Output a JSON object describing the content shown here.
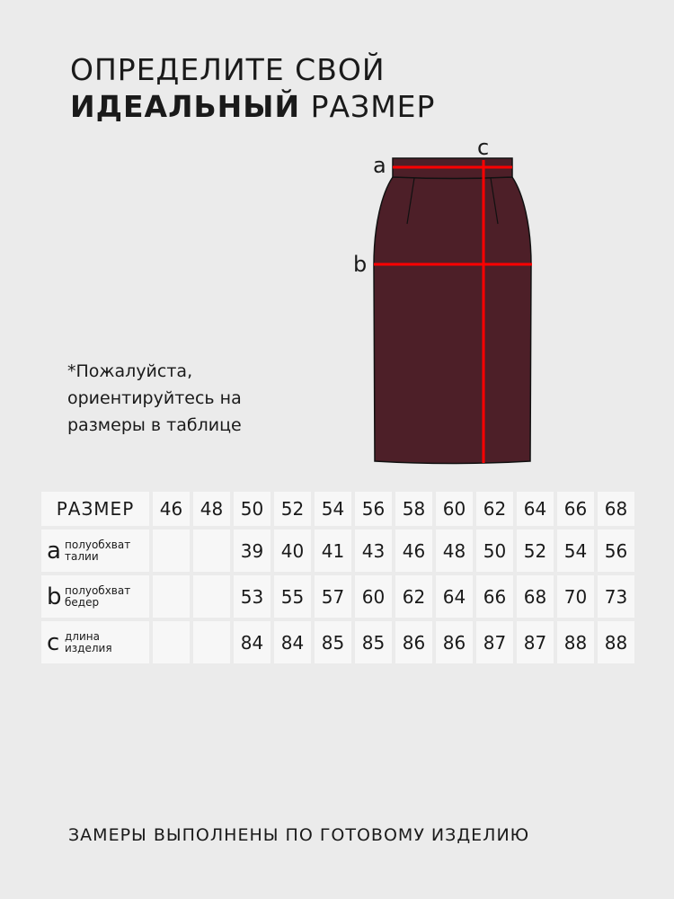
{
  "title": {
    "line1": "ОПРЕДЕЛИТЕ СВОЙ",
    "line2_bold": "ИДЕАЛЬНЫЙ",
    "line2_rest": " РАЗМЕР"
  },
  "diagram": {
    "labels": {
      "a": "a",
      "b": "b",
      "c": "c"
    },
    "skirt_color": "#4d1f28",
    "measure_color": "#ff0000"
  },
  "note": "*Пожалуйста, ориентируйтесь на размеры в таблице",
  "table": {
    "header_label": "РАЗМЕР",
    "sizes": [
      "46",
      "48",
      "50",
      "52",
      "54",
      "56",
      "58",
      "60",
      "62",
      "64",
      "66",
      "68"
    ],
    "rows": [
      {
        "letter": "a",
        "desc1": "полуобхват",
        "desc2": "талии",
        "values": [
          "",
          "",
          "39",
          "40",
          "41",
          "43",
          "46",
          "48",
          "50",
          "52",
          "54",
          "56"
        ]
      },
      {
        "letter": "b",
        "desc1": "полуобхват",
        "desc2": "бедер",
        "values": [
          "",
          "",
          "53",
          "55",
          "57",
          "60",
          "62",
          "64",
          "66",
          "68",
          "70",
          "73"
        ]
      },
      {
        "letter": "c",
        "desc1": "длина",
        "desc2": "изделия",
        "values": [
          "",
          "",
          "84",
          "84",
          "85",
          "85",
          "86",
          "86",
          "87",
          "87",
          "88",
          "88"
        ]
      }
    ]
  },
  "footer": "ЗАМЕРЫ ВЫПОЛНЕНЫ ПО ГОТОВОМУ ИЗДЕЛИЮ"
}
